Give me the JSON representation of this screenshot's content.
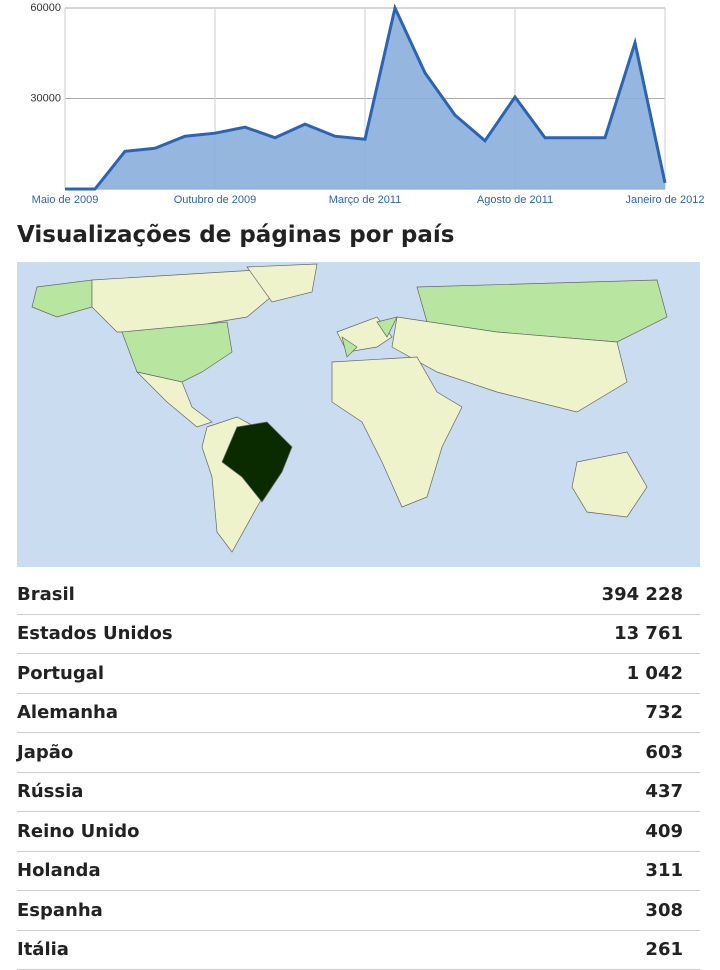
{
  "chart_data": {
    "type": "area",
    "color": "#8aaedc",
    "line_color": "#2c64b4",
    "categories": [
      "Maio de 2009",
      null,
      null,
      null,
      null,
      "Outubro de 2009",
      null,
      null,
      null,
      null,
      "Março de 2011",
      null,
      null,
      null,
      null,
      "Agosto de 2011",
      null,
      null,
      null,
      null,
      "Janeiro de 2012"
    ],
    "values": [
      0,
      0,
      12500,
      13500,
      17500,
      18500,
      20500,
      17000,
      21500,
      17500,
      16500,
      60000,
      38500,
      24500,
      16000,
      30500,
      17000,
      17000,
      17000,
      48500,
      2000
    ],
    "ylim": [
      0,
      60000
    ],
    "yticks": [
      30000,
      60000
    ],
    "grid": true
  },
  "section": {
    "title": "Visualizações de páginas por país"
  },
  "table": {
    "rows": [
      [
        "Brasil",
        "394 228"
      ],
      [
        "Estados Unidos",
        "13 761"
      ],
      [
        "Portugal",
        "1 042"
      ],
      [
        "Alemanha",
        "732"
      ],
      [
        "Japão",
        "603"
      ],
      [
        "Rússia",
        "437"
      ],
      [
        "Reino Unido",
        "409"
      ],
      [
        "Holanda",
        "311"
      ],
      [
        "Espanha",
        "308"
      ],
      [
        "Itália",
        "261"
      ]
    ]
  }
}
